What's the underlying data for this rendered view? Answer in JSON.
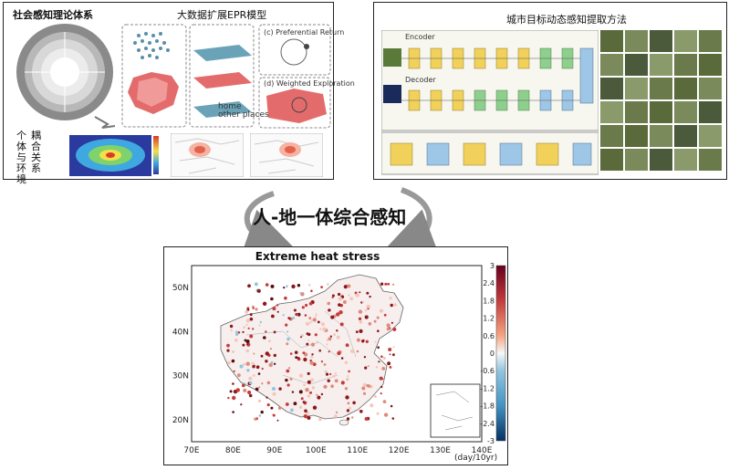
{
  "left_panel": {
    "title": "社会感知理论体系",
    "epr_title": "大数据扩展EPR模型",
    "side_label": "耦合关系",
    "side_label2": "个体与环境",
    "preferential_return": "(c) Preferential Return",
    "weighted_exploration": "(d) Weighted Exploration",
    "legend_home": "home",
    "legend_other": "other places"
  },
  "right_panel": {
    "title": "城市目标动态感知提取方法",
    "encoder_label": "Encoder",
    "decoder_label": "Decoder"
  },
  "center": {
    "title": "人-地一体综合感知"
  },
  "map_chart": {
    "title": "Extreme heat stress",
    "unit_label": "(day/10yr)",
    "colors": {
      "high": "#8b1a1a",
      "mid": "#f2f2f2",
      "low": "#1f4e8c"
    }
  },
  "chart_data": {
    "type": "scatter",
    "title": "Extreme heat stress",
    "xlabel": "",
    "ylabel": "",
    "x_ticks": [
      "70E",
      "80E",
      "90E",
      "100E",
      "110E",
      "120E",
      "130E",
      "140E"
    ],
    "y_ticks": [
      "20N",
      "30N",
      "40N",
      "50N"
    ],
    "xlim": [
      70,
      140
    ],
    "ylim": [
      15,
      55
    ],
    "colorbar": {
      "ticks": [
        "3",
        "2.4",
        "1.8",
        "1.2",
        "0.6",
        "0",
        "-0.6",
        "-1.2",
        "-1.8",
        "-2.4",
        "-3"
      ],
      "range": [
        -3,
        3
      ],
      "unit": "(day/10yr)"
    }
  }
}
